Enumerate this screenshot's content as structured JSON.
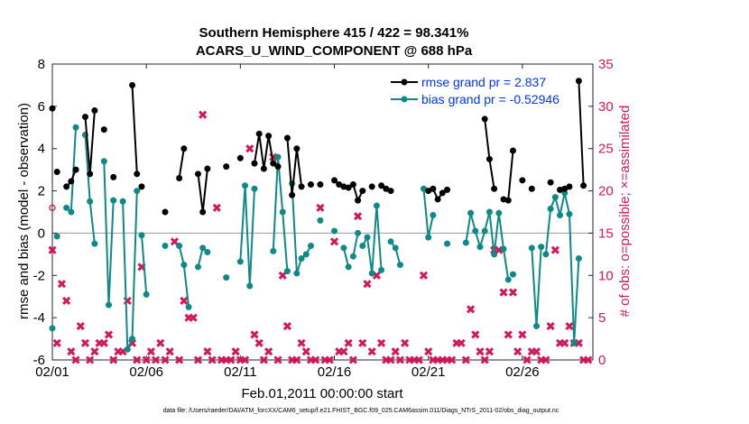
{
  "chart_data": {
    "type": "line",
    "title_line1": "Southern Hemisphere 415 / 422 = 98.341%",
    "title_line2": "ACARS_U_WIND_COMPONENT @ 688 hPa",
    "xlabel": "Feb.01,2011 00:00:00 start",
    "ylabel_left": "rmse and bias (model - observation)",
    "ylabel_right": "# of obs: o=possible; ×=assimilated",
    "footer": "data file: /Users/raeder/DAI/ATM_forcXX/CAM6_setup/f.e21.FHIST_BGC.f09_025.CAM6assim.011/Diags_NTrS_2011-02/obs_diag_output.nc",
    "xlim": [
      0,
      28.75
    ],
    "ylim_left": [
      -6,
      8
    ],
    "ylim_right": [
      0,
      35
    ],
    "x_ticks": [
      0,
      5,
      10,
      15,
      20,
      25
    ],
    "x_tick_labels": [
      "02/01",
      "02/06",
      "02/11",
      "02/16",
      "02/21",
      "02/26"
    ],
    "y_left_ticks": [
      -6,
      -4,
      -2,
      0,
      2,
      4,
      6,
      8
    ],
    "y_left_tick_labels": [
      "-6",
      "-4",
      "-2",
      "0",
      "2",
      "4",
      "6",
      "8"
    ],
    "y_right_ticks": [
      0,
      5,
      10,
      15,
      20,
      25,
      30,
      35
    ],
    "y_right_tick_labels": [
      "0",
      "5",
      "10",
      "15",
      "20",
      "25",
      "30",
      "35"
    ],
    "legend_position": "top-right",
    "colors": {
      "rmse": "#000000",
      "bias": "#0e8a86",
      "obs": "#d6165a",
      "legend_text": "#0033ff",
      "zero_line": "#999999"
    },
    "series": [
      {
        "name": "rmse grand pr = 2.837",
        "segments": [
          [
            [
              0,
              5.9
            ]
          ],
          [
            [
              0.25,
              2.9
            ]
          ],
          [
            [
              0.75,
              2.2
            ],
            [
              1.0,
              2.45
            ],
            [
              1.25,
              3.0
            ]
          ],
          [
            [
              1.75,
              5.5
            ],
            [
              2.0,
              2.8
            ],
            [
              2.25,
              5.8
            ]
          ],
          [
            [
              2.75,
              4.9
            ]
          ],
          [
            [
              3.25,
              2.65
            ]
          ],
          [
            [
              4.25,
              7.0
            ],
            [
              4.5,
              2.8
            ]
          ],
          [
            [
              4.75,
              2.2
            ]
          ],
          [
            [
              6.0,
              1.0
            ]
          ],
          [
            [
              6.75,
              2.6
            ],
            [
              7.0,
              4.0
            ]
          ],
          [
            [
              7.75,
              2.8
            ],
            [
              8.0,
              1.0
            ],
            [
              8.25,
              3.05
            ]
          ],
          [
            [
              9.25,
              3.15
            ]
          ],
          [
            [
              10.0,
              3.55
            ]
          ],
          [
            [
              10.75,
              3.3
            ],
            [
              11.0,
              4.7
            ],
            [
              11.25,
              3.05
            ],
            [
              11.5,
              4.6
            ],
            [
              11.75,
              3.3
            ],
            [
              12.0,
              3.15
            ]
          ],
          [
            [
              12.5,
              4.5
            ],
            [
              12.75,
              1.8
            ],
            [
              13.0,
              4.0
            ],
            [
              13.25,
              2.2
            ]
          ],
          [
            [
              13.75,
              2.3
            ]
          ],
          [
            [
              14.25,
              2.3
            ]
          ],
          [
            [
              15.0,
              2.5
            ],
            [
              15.25,
              2.3
            ],
            [
              15.5,
              2.2
            ],
            [
              15.75,
              2.15
            ]
          ],
          [
            [
              16.0,
              2.3
            ],
            [
              16.25,
              1.55
            ],
            [
              16.5,
              2.0
            ]
          ],
          [
            [
              17.0,
              2.2
            ]
          ],
          [
            [
              17.5,
              2.25
            ],
            [
              17.75,
              2.1
            ],
            [
              18.0,
              2.0
            ]
          ],
          [
            [
              20.0,
              2.0
            ],
            [
              20.25,
              2.1
            ],
            [
              20.5,
              1.6
            ],
            [
              20.75,
              1.9
            ],
            [
              21.0,
              2.05
            ]
          ],
          [
            [
              23.0,
              5.4
            ],
            [
              23.25,
              3.5
            ],
            [
              23.5,
              2.1
            ]
          ],
          [
            [
              24.0,
              1.6
            ],
            [
              24.25,
              1.55
            ],
            [
              24.5,
              3.9
            ]
          ],
          [
            [
              25.0,
              2.5
            ]
          ],
          [
            [
              25.5,
              2.1
            ]
          ],
          [
            [
              26.5,
              2.4
            ]
          ],
          [
            [
              27.0,
              2.05
            ],
            [
              27.25,
              2.1
            ],
            [
              27.5,
              2.2
            ]
          ],
          [
            [
              28.0,
              7.2
            ],
            [
              28.25,
              2.25
            ]
          ]
        ]
      },
      {
        "name": "bias grand pr = -0.52946",
        "segments": [
          [
            [
              0,
              -4.5
            ]
          ],
          [
            [
              0.25,
              -0.15
            ]
          ],
          [
            [
              0.75,
              1.2
            ],
            [
              1.0,
              1.0
            ],
            [
              1.25,
              5.0
            ]
          ],
          [
            [
              1.75,
              4.65
            ],
            [
              2.0,
              1.5
            ],
            [
              2.25,
              -0.5
            ]
          ],
          [
            [
              2.75,
              3.4
            ],
            [
              3.0,
              -3.4
            ],
            [
              3.25,
              1.55
            ]
          ],
          [
            [
              3.75,
              1.5
            ],
            [
              4.0,
              -5.5
            ],
            [
              4.25,
              -5.0
            ],
            [
              4.5,
              2.0
            ]
          ],
          [
            [
              4.75,
              -0.1
            ],
            [
              5.0,
              -2.9
            ]
          ],
          [
            [
              6.0,
              -0.6
            ]
          ],
          [
            [
              6.75,
              -0.6
            ],
            [
              7.0,
              -1.5
            ],
            [
              7.25,
              -3.5
            ]
          ],
          [
            [
              7.75,
              -1.6
            ],
            [
              8.0,
              -0.7
            ],
            [
              8.25,
              -0.9
            ]
          ],
          [
            [
              9.25,
              -2.1
            ]
          ],
          [
            [
              10.0,
              -1.35
            ],
            [
              10.25,
              2.25
            ],
            [
              10.5,
              -2.5
            ],
            [
              10.75,
              2.1
            ]
          ],
          [
            [
              11.75,
              -0.85
            ],
            [
              12.0,
              3.6
            ],
            [
              12.25,
              1.0
            ],
            [
              12.5,
              -1.8
            ]
          ],
          [
            [
              12.75,
              2.35
            ],
            [
              13.0,
              -1.9
            ],
            [
              13.25,
              -1.2
            ],
            [
              13.5,
              -1.0
            ],
            [
              13.75,
              -0.6
            ]
          ],
          [
            [
              14.25,
              0.6
            ]
          ],
          [
            [
              15.0,
              0.1
            ]
          ],
          [
            [
              15.5,
              -0.7
            ],
            [
              15.75,
              -1.6
            ]
          ],
          [
            [
              16.0,
              -1.1
            ],
            [
              16.25,
              0.0
            ]
          ],
          [
            [
              16.5,
              -0.6
            ],
            [
              16.75,
              -0.2
            ],
            [
              17.0,
              -1.9
            ],
            [
              17.25,
              1.3
            ],
            [
              17.5,
              -1.75
            ]
          ],
          [
            [
              18.0,
              -0.4
            ],
            [
              18.25,
              -0.7
            ],
            [
              18.5,
              -1.5
            ]
          ],
          [
            [
              19.75,
              2.1
            ],
            [
              20.0,
              -0.2
            ],
            [
              20.25,
              0.85
            ]
          ],
          [
            [
              21.0,
              -0.5
            ]
          ],
          [
            [
              22.0,
              -0.45
            ],
            [
              22.25,
              0.95
            ],
            [
              22.5,
              0.1
            ],
            [
              22.75,
              -0.65
            ],
            [
              23.0,
              0.1
            ],
            [
              23.25,
              1.0
            ],
            [
              23.5,
              -1.0
            ],
            [
              23.75,
              0.95
            ],
            [
              24.0,
              -0.75
            ],
            [
              24.25,
              -2.2
            ]
          ],
          [
            [
              24.5,
              -1.95
            ]
          ],
          [
            [
              25.5,
              -0.7
            ],
            [
              25.75,
              -4.4
            ],
            [
              26.0,
              -0.65
            ]
          ],
          [
            [
              26.25,
              -1.0
            ],
            [
              26.5,
              1.15
            ],
            [
              26.75,
              1.7
            ],
            [
              27.0,
              0.85
            ],
            [
              27.25,
              1.9
            ],
            [
              27.5,
              0.9
            ],
            [
              27.75,
              -5.2
            ],
            [
              28.0,
              -1.2
            ]
          ]
        ]
      },
      {
        "name": "obs possible",
        "marker": "circle",
        "points": [
          [
            0,
            18
          ]
        ]
      },
      {
        "name": "obs assimilated",
        "marker": "x",
        "points": [
          [
            0,
            13
          ],
          [
            0.25,
            2
          ],
          [
            0.5,
            9
          ],
          [
            0.75,
            7
          ],
          [
            1.0,
            1
          ],
          [
            1.25,
            0
          ],
          [
            1.5,
            4
          ],
          [
            1.75,
            2
          ],
          [
            2.0,
            0
          ],
          [
            2.25,
            1
          ],
          [
            2.5,
            2
          ],
          [
            2.75,
            2
          ],
          [
            3.0,
            3
          ],
          [
            3.25,
            0
          ],
          [
            3.5,
            1
          ],
          [
            3.75,
            1
          ],
          [
            4.0,
            7
          ],
          [
            4.25,
            2
          ],
          [
            4.5,
            0
          ],
          [
            4.75,
            11
          ],
          [
            5.0,
            0
          ],
          [
            5.25,
            1
          ],
          [
            5.5,
            0
          ],
          [
            5.75,
            2
          ],
          [
            6.0,
            0
          ],
          [
            6.25,
            1
          ],
          [
            6.5,
            14
          ],
          [
            6.75,
            0
          ],
          [
            7.0,
            7
          ],
          [
            7.25,
            5
          ],
          [
            7.5,
            5
          ],
          [
            7.75,
            0
          ],
          [
            8.0,
            29
          ],
          [
            8.25,
            1
          ],
          [
            8.5,
            0
          ],
          [
            8.75,
            18
          ],
          [
            9.0,
            0
          ],
          [
            9.25,
            0
          ],
          [
            9.5,
            0
          ],
          [
            9.75,
            1
          ],
          [
            10.0,
            0
          ],
          [
            10.25,
            0
          ],
          [
            10.5,
            25
          ],
          [
            10.75,
            3
          ],
          [
            11.0,
            2
          ],
          [
            11.25,
            0
          ],
          [
            11.5,
            1
          ],
          [
            11.75,
            24
          ],
          [
            12.0,
            0
          ],
          [
            12.25,
            10
          ],
          [
            12.5,
            4
          ],
          [
            12.75,
            0
          ],
          [
            13.0,
            0
          ],
          [
            13.25,
            2
          ],
          [
            13.5,
            1
          ],
          [
            13.75,
            0
          ],
          [
            14.0,
            0
          ],
          [
            14.25,
            18
          ],
          [
            14.5,
            0
          ],
          [
            14.75,
            0
          ],
          [
            15.0,
            14
          ],
          [
            15.25,
            1
          ],
          [
            15.5,
            1
          ],
          [
            15.75,
            2
          ],
          [
            16.0,
            0
          ],
          [
            16.25,
            17
          ],
          [
            16.5,
            2
          ],
          [
            16.75,
            9
          ],
          [
            17.0,
            1
          ],
          [
            17.25,
            10
          ],
          [
            17.5,
            2
          ],
          [
            17.75,
            0
          ],
          [
            18.0,
            0
          ],
          [
            18.25,
            1
          ],
          [
            18.5,
            0
          ],
          [
            18.75,
            2
          ],
          [
            19.0,
            0
          ],
          [
            19.25,
            0
          ],
          [
            19.5,
            0
          ],
          [
            19.75,
            10
          ],
          [
            20.0,
            1
          ],
          [
            20.25,
            0
          ],
          [
            20.5,
            0
          ],
          [
            20.75,
            0
          ],
          [
            21.0,
            0
          ],
          [
            21.25,
            0
          ],
          [
            21.5,
            2
          ],
          [
            21.75,
            2
          ],
          [
            22.0,
            0
          ],
          [
            22.25,
            6
          ],
          [
            22.5,
            3
          ],
          [
            22.75,
            1
          ],
          [
            23.0,
            0
          ],
          [
            23.25,
            1
          ],
          [
            23.5,
            13
          ],
          [
            23.75,
            13
          ],
          [
            24.0,
            8
          ],
          [
            24.25,
            3
          ],
          [
            24.5,
            8
          ],
          [
            24.75,
            1
          ],
          [
            25.0,
            3
          ],
          [
            25.25,
            0
          ],
          [
            25.5,
            1
          ],
          [
            25.75,
            1
          ],
          [
            26.0,
            0
          ],
          [
            26.25,
            0
          ],
          [
            26.5,
            4
          ],
          [
            26.75,
            13
          ],
          [
            27.0,
            2
          ],
          [
            27.25,
            2
          ],
          [
            27.5,
            4
          ],
          [
            27.75,
            2
          ],
          [
            28.0,
            2
          ],
          [
            28.25,
            0
          ],
          [
            28.5,
            0
          ]
        ]
      }
    ]
  }
}
